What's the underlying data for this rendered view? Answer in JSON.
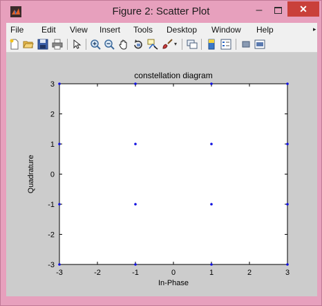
{
  "window": {
    "title": "Figure 2: Scatter Plot",
    "minimize_glyph": "–",
    "close_glyph": "✕"
  },
  "menu": {
    "items": [
      {
        "label": "File"
      },
      {
        "label": "Edit"
      },
      {
        "label": "View"
      },
      {
        "label": "Insert"
      },
      {
        "label": "Tools"
      },
      {
        "label": "Desktop"
      },
      {
        "label": "Window"
      },
      {
        "label": "Help"
      }
    ],
    "overflow_glyph": "▸"
  },
  "toolbar": {
    "icons": [
      "new-figure-icon",
      "open-file-icon",
      "save-icon",
      "print-icon",
      "pointer-icon",
      "zoom-in-icon",
      "zoom-out-icon",
      "pan-icon",
      "rotate-icon",
      "data-cursor-icon",
      "brush-icon",
      "link-plot-icon",
      "colorbar-icon",
      "legend-icon",
      "hide-plot-tools-icon",
      "show-plot-tools-icon"
    ]
  },
  "colors": {
    "window_frame": "#e7a0bd",
    "close_button": "#c9403a",
    "figure_background": "#cccccc",
    "axes_background": "#ffffff",
    "marker": "#1010e0"
  },
  "chart_data": {
    "type": "scatter",
    "title": "constellation diagram",
    "xlabel": "In-Phase",
    "ylabel": "Quadrature",
    "xlim": [
      -3,
      3
    ],
    "ylim": [
      -3,
      3
    ],
    "xticks": [
      -3,
      -2,
      -1,
      0,
      1,
      2,
      3
    ],
    "yticks": [
      -3,
      -2,
      -1,
      0,
      1,
      2,
      3
    ],
    "grid": false,
    "marker": ".",
    "points": [
      {
        "x": -3,
        "y": 3
      },
      {
        "x": -1,
        "y": 3
      },
      {
        "x": 1,
        "y": 3
      },
      {
        "x": 3,
        "y": 3
      },
      {
        "x": -3,
        "y": 1
      },
      {
        "x": -1,
        "y": 1
      },
      {
        "x": 1,
        "y": 1
      },
      {
        "x": 3,
        "y": 1
      },
      {
        "x": -3,
        "y": -1
      },
      {
        "x": -1,
        "y": -1
      },
      {
        "x": 1,
        "y": -1
      },
      {
        "x": 3,
        "y": -1
      },
      {
        "x": -3,
        "y": -3
      },
      {
        "x": -1,
        "y": -3
      },
      {
        "x": 1,
        "y": -3
      },
      {
        "x": 3,
        "y": -3
      }
    ]
  }
}
